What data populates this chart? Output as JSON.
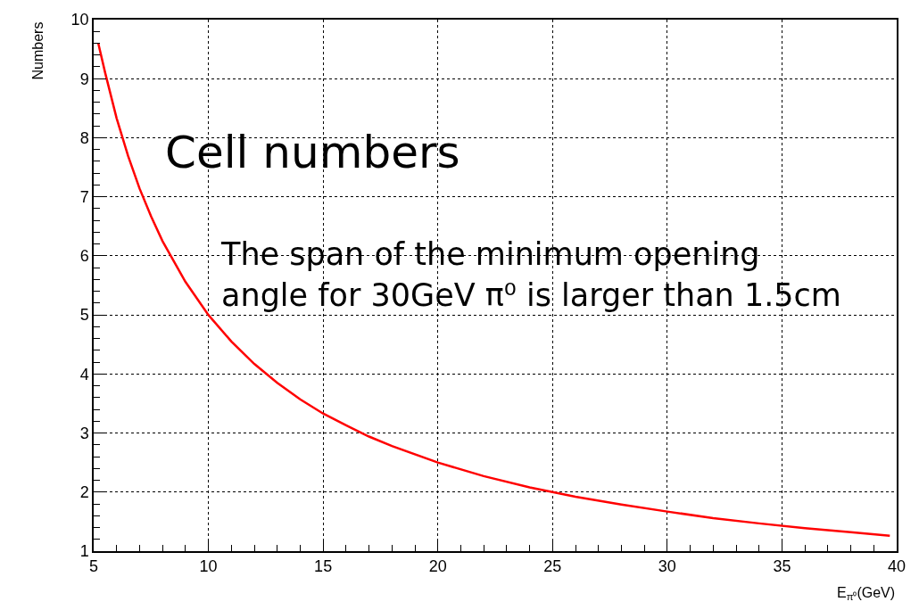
{
  "chart_data": {
    "type": "line",
    "xlabel": "E$_{π⁰}$(GeV)",
    "ylabel": "Numbers",
    "x": [
      5.2,
      5.5,
      6,
      6.5,
      7,
      7.5,
      8,
      9,
      10,
      11,
      12,
      13,
      14,
      15,
      16,
      17,
      18,
      20,
      22,
      24,
      26,
      28,
      30,
      32,
      34,
      36,
      38,
      39.7
    ],
    "series": [
      {
        "color": "#ff0000",
        "values": [
          9.6,
          9.1,
          8.33,
          7.69,
          7.14,
          6.67,
          6.25,
          5.56,
          5.0,
          4.55,
          4.17,
          3.85,
          3.57,
          3.33,
          3.13,
          2.94,
          2.78,
          2.5,
          2.27,
          2.08,
          1.92,
          1.79,
          1.67,
          1.56,
          1.47,
          1.39,
          1.32,
          1.26
        ]
      }
    ],
    "xlim": [
      5,
      40
    ],
    "xticks": [
      5,
      10,
      15,
      20,
      25,
      30,
      35,
      40
    ],
    "ylim": [
      1,
      10
    ],
    "yticks": [
      1,
      2,
      3,
      4,
      5,
      6,
      7,
      8,
      9,
      10
    ],
    "grid": true,
    "marker": "none",
    "line_style": "solid",
    "annotations": [
      "Cell numbers",
      "The span of the minimum opening\nangle for 30GeV π⁰ is larger than 1.5cm"
    ]
  }
}
